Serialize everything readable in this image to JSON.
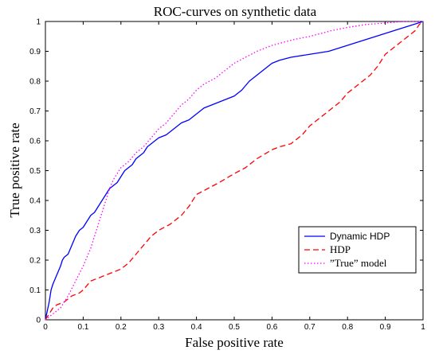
{
  "chart_data": {
    "type": "line",
    "title": "ROC-curves on synthetic data",
    "xlabel": "False positive rate",
    "ylabel": "True positive rate",
    "xlim": [
      0,
      1
    ],
    "ylim": [
      0,
      1
    ],
    "x_ticks": [
      "0",
      "0.1",
      "0.2",
      "0.3",
      "0.4",
      "0.5",
      "0.6",
      "0.7",
      "0.8",
      "0.9",
      "1"
    ],
    "y_ticks": [
      "0",
      "0.1",
      "0.2",
      "0.3",
      "0.4",
      "0.5",
      "0.6",
      "0.7",
      "0.8",
      "0.9",
      "1"
    ],
    "grid": false,
    "legend_position": "lower-right",
    "series": [
      {
        "name": "Dynamic HDP",
        "color": "#0000ff",
        "dash": "solid",
        "x": [
          0,
          0.005,
          0.01,
          0.015,
          0.02,
          0.03,
          0.04,
          0.045,
          0.05,
          0.06,
          0.07,
          0.08,
          0.09,
          0.1,
          0.11,
          0.12,
          0.13,
          0.14,
          0.15,
          0.16,
          0.17,
          0.18,
          0.19,
          0.2,
          0.21,
          0.22,
          0.23,
          0.24,
          0.25,
          0.26,
          0.27,
          0.28,
          0.29,
          0.3,
          0.32,
          0.34,
          0.36,
          0.38,
          0.4,
          0.42,
          0.44,
          0.46,
          0.48,
          0.5,
          0.52,
          0.54,
          0.56,
          0.58,
          0.6,
          0.62,
          0.65,
          0.7,
          0.75,
          0.8,
          0.85,
          0.9,
          0.95,
          1
        ],
        "y": [
          0,
          0.03,
          0.06,
          0.1,
          0.12,
          0.15,
          0.18,
          0.2,
          0.21,
          0.22,
          0.25,
          0.28,
          0.3,
          0.31,
          0.33,
          0.35,
          0.36,
          0.38,
          0.4,
          0.42,
          0.44,
          0.45,
          0.46,
          0.48,
          0.5,
          0.51,
          0.52,
          0.54,
          0.55,
          0.56,
          0.58,
          0.59,
          0.6,
          0.61,
          0.62,
          0.64,
          0.66,
          0.67,
          0.69,
          0.71,
          0.72,
          0.73,
          0.74,
          0.75,
          0.77,
          0.8,
          0.82,
          0.84,
          0.86,
          0.87,
          0.88,
          0.89,
          0.9,
          0.92,
          0.94,
          0.96,
          0.98,
          1
        ]
      },
      {
        "name": "HDP",
        "color": "#ff0000",
        "dash": "dashed",
        "x": [
          0,
          0.01,
          0.02,
          0.03,
          0.05,
          0.07,
          0.09,
          0.1,
          0.12,
          0.14,
          0.16,
          0.18,
          0.2,
          0.22,
          0.24,
          0.26,
          0.28,
          0.3,
          0.33,
          0.36,
          0.38,
          0.4,
          0.43,
          0.46,
          0.5,
          0.53,
          0.56,
          0.6,
          0.62,
          0.65,
          0.68,
          0.7,
          0.72,
          0.75,
          0.78,
          0.8,
          0.83,
          0.86,
          0.88,
          0.9,
          0.92,
          0.94,
          0.96,
          0.97,
          0.98,
          0.99,
          1
        ],
        "y": [
          0,
          0.02,
          0.04,
          0.05,
          0.06,
          0.08,
          0.09,
          0.1,
          0.13,
          0.14,
          0.15,
          0.16,
          0.17,
          0.19,
          0.22,
          0.25,
          0.28,
          0.3,
          0.32,
          0.35,
          0.38,
          0.42,
          0.44,
          0.46,
          0.49,
          0.51,
          0.54,
          0.57,
          0.58,
          0.59,
          0.62,
          0.65,
          0.67,
          0.7,
          0.73,
          0.76,
          0.79,
          0.82,
          0.85,
          0.89,
          0.91,
          0.93,
          0.95,
          0.96,
          0.97,
          0.99,
          1
        ]
      },
      {
        "name": "”True” model",
        "color": "#ff00ff",
        "dash": "dotted",
        "x": [
          0,
          0.01,
          0.02,
          0.04,
          0.06,
          0.08,
          0.1,
          0.12,
          0.13,
          0.14,
          0.15,
          0.16,
          0.17,
          0.18,
          0.19,
          0.2,
          0.22,
          0.24,
          0.26,
          0.28,
          0.3,
          0.32,
          0.34,
          0.36,
          0.38,
          0.4,
          0.42,
          0.45,
          0.48,
          0.5,
          0.53,
          0.56,
          0.6,
          0.63,
          0.66,
          0.7,
          0.73,
          0.76,
          0.8,
          0.85,
          0.9,
          0.95,
          1
        ],
        "y": [
          0,
          0.01,
          0.02,
          0.04,
          0.08,
          0.13,
          0.18,
          0.24,
          0.28,
          0.32,
          0.36,
          0.4,
          0.44,
          0.47,
          0.49,
          0.51,
          0.53,
          0.56,
          0.58,
          0.61,
          0.64,
          0.66,
          0.69,
          0.72,
          0.74,
          0.77,
          0.79,
          0.81,
          0.84,
          0.86,
          0.88,
          0.9,
          0.92,
          0.93,
          0.94,
          0.95,
          0.96,
          0.97,
          0.98,
          0.99,
          0.995,
          1,
          1
        ]
      }
    ]
  }
}
